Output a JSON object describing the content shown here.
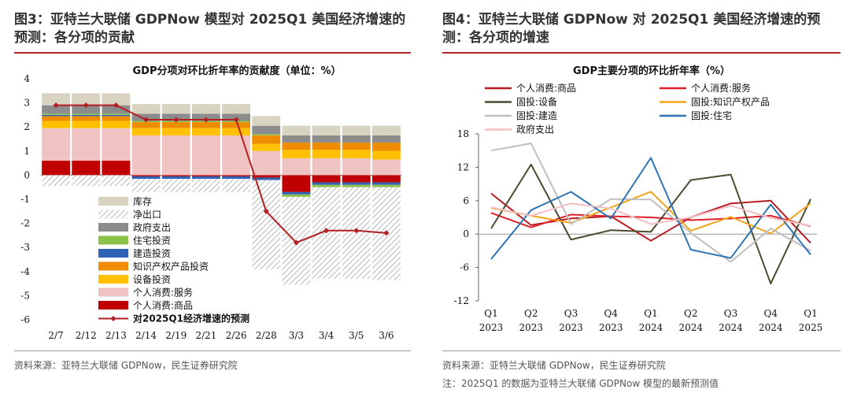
{
  "left": {
    "fig_title": "图3：亚特兰大联储 GDPNow 模型对 2025Q1 美国经济增速的预测：各分项的贡献",
    "source": "资料来源：亚特兰大联储 GDPNow，民生证券研究院"
  },
  "right": {
    "fig_title": "图4：亚特兰大联储 GDPNow 对 2025Q1 美国经济增速的预测：各分项的增速",
    "source": "资料来源：亚特兰大联储 GDPNow，民生证券研究院",
    "note": "注：2025Q1 的数据为亚特兰大联储 GDPNow 模型的最新预测值"
  },
  "colors": {
    "inventory": "#d9d4c1",
    "net_exports": "#bdbdbd",
    "government": "#8c8c8c",
    "residential": "#8bc34a",
    "structures": "#2e62b5",
    "ip": "#f08c00",
    "equipment": "#ffc000",
    "services": "#f0c3c3",
    "goods": "#c00000",
    "forecast": "#b32024"
  },
  "chart_data": [
    {
      "type": "bar",
      "stacked": true,
      "title": "GDP分项对环比折年率的贡献度（单位：%）",
      "categories": [
        "2/7",
        "2/12",
        "2/13",
        "2/14",
        "2/19",
        "2/21",
        "2/26",
        "2/28",
        "3/3",
        "3/4",
        "3/5",
        "3/6"
      ],
      "ylim": [
        -6,
        4
      ],
      "yticks": [
        -6,
        -5,
        -4,
        -3,
        -2,
        -1,
        0,
        1,
        2,
        3,
        4
      ],
      "legend_position": "bottom-left",
      "series": [
        {
          "key": "inventory",
          "name": "库存",
          "values": [
            0.5,
            0.5,
            0.5,
            0.4,
            0.4,
            0.4,
            0.4,
            0.4,
            0.4,
            0.4,
            0.4,
            0.4
          ]
        },
        {
          "key": "net_exports",
          "name": "净出口",
          "values": [
            -0.45,
            -0.45,
            -0.45,
            -0.55,
            -0.55,
            -0.55,
            -0.55,
            -3.7,
            -3.65,
            -3.8,
            -3.8,
            -3.85
          ]
        },
        {
          "key": "government",
          "name": "政府支出",
          "values": [
            0.35,
            0.35,
            0.35,
            0.3,
            0.3,
            0.3,
            0.3,
            0.35,
            0.3,
            0.3,
            0.3,
            0.3
          ]
        },
        {
          "key": "residential",
          "name": "住宅投资",
          "values": [
            0.05,
            0.05,
            0.05,
            0.05,
            0.05,
            0.05,
            0.05,
            0.05,
            -0.1,
            -0.1,
            -0.1,
            -0.1
          ]
        },
        {
          "key": "structures",
          "name": "建造投资",
          "values": [
            0.05,
            0.05,
            0.05,
            -0.1,
            -0.1,
            -0.1,
            -0.1,
            -0.1,
            -0.1,
            -0.1,
            -0.1,
            -0.1
          ]
        },
        {
          "key": "ip",
          "name": "知识产权产品投资",
          "values": [
            0.2,
            0.2,
            0.2,
            0.25,
            0.25,
            0.25,
            0.25,
            0.35,
            0.3,
            0.3,
            0.3,
            0.35
          ]
        },
        {
          "key": "equipment",
          "name": "设备投资",
          "values": [
            0.3,
            0.3,
            0.3,
            0.3,
            0.3,
            0.3,
            0.3,
            0.3,
            0.35,
            0.35,
            0.35,
            0.35
          ]
        },
        {
          "key": "services",
          "name": "个人消费:服务",
          "values": [
            1.35,
            1.35,
            1.35,
            1.65,
            1.65,
            1.65,
            1.65,
            1.0,
            0.7,
            0.7,
            0.7,
            0.65
          ]
        },
        {
          "key": "goods",
          "name": "个人消费:商品",
          "values": [
            0.6,
            0.6,
            0.6,
            -0.05,
            -0.05,
            -0.05,
            -0.05,
            -0.1,
            -0.7,
            -0.3,
            -0.3,
            -0.3
          ]
        }
      ],
      "line": {
        "key": "forecast",
        "name": "对2025Q1经济增速的预测",
        "values": [
          2.9,
          2.9,
          2.9,
          2.3,
          2.3,
          2.3,
          2.3,
          -1.5,
          -2.8,
          -2.3,
          -2.3,
          -2.4
        ]
      }
    },
    {
      "type": "line",
      "title": "GDP主要分项的环比折年率（%）",
      "categories": [
        "Q1 2023",
        "Q2 2023",
        "Q3 2023",
        "Q4 2023",
        "Q1 2024",
        "Q2 2024",
        "Q3 2024",
        "Q4 2024",
        "Q1 2025"
      ],
      "category_lines": [
        [
          "Q1",
          "2023"
        ],
        [
          "Q2",
          "2023"
        ],
        [
          "Q3",
          "2023"
        ],
        [
          "Q4",
          "2023"
        ],
        [
          "Q1",
          "2024"
        ],
        [
          "Q2",
          "2024"
        ],
        [
          "Q3",
          "2024"
        ],
        [
          "Q4",
          "2024"
        ],
        [
          "Q1",
          "2025"
        ]
      ],
      "ylim": [
        -12,
        18
      ],
      "yticks": [
        -12,
        -6,
        0,
        6,
        12,
        18
      ],
      "legend_position": "top",
      "series": [
        {
          "name": "个人消费:商品",
          "color": "#b81c22",
          "values": [
            7.3,
            1.6,
            2.8,
            3.2,
            -1.2,
            3.0,
            5.5,
            6.0,
            -1.6
          ]
        },
        {
          "name": "个人消费:服务",
          "color": "#e0202a",
          "values": [
            3.8,
            1.2,
            3.5,
            3.2,
            3.0,
            2.5,
            2.8,
            3.3,
            1.4
          ]
        },
        {
          "name": "固投:设备",
          "color": "#4d4a2e",
          "values": [
            1.0,
            12.5,
            -1.0,
            0.7,
            0.4,
            9.7,
            10.7,
            -8.9,
            6.3
          ]
        },
        {
          "name": "固投:知识产权产品",
          "color": "#f2a51a",
          "values": [
            4.7,
            3.3,
            2.0,
            4.8,
            7.6,
            0.6,
            3.1,
            0.1,
            5.5
          ]
        },
        {
          "name": "固投:建造",
          "color": "#bfbfbf",
          "values": [
            15.0,
            16.3,
            1.8,
            6.3,
            6.2,
            0.2,
            -5.0,
            1.0,
            -3.0
          ]
        },
        {
          "name": "固投:住宅",
          "color": "#2e75b6",
          "values": [
            -4.5,
            4.3,
            7.6,
            2.8,
            13.7,
            -2.8,
            -4.3,
            5.3,
            -3.7
          ]
        },
        {
          "name": "政府支出",
          "color": "#f2bfc4",
          "values": [
            4.8,
            3.3,
            5.5,
            4.6,
            1.8,
            3.0,
            5.1,
            2.9,
            1.5
          ]
        }
      ]
    }
  ]
}
